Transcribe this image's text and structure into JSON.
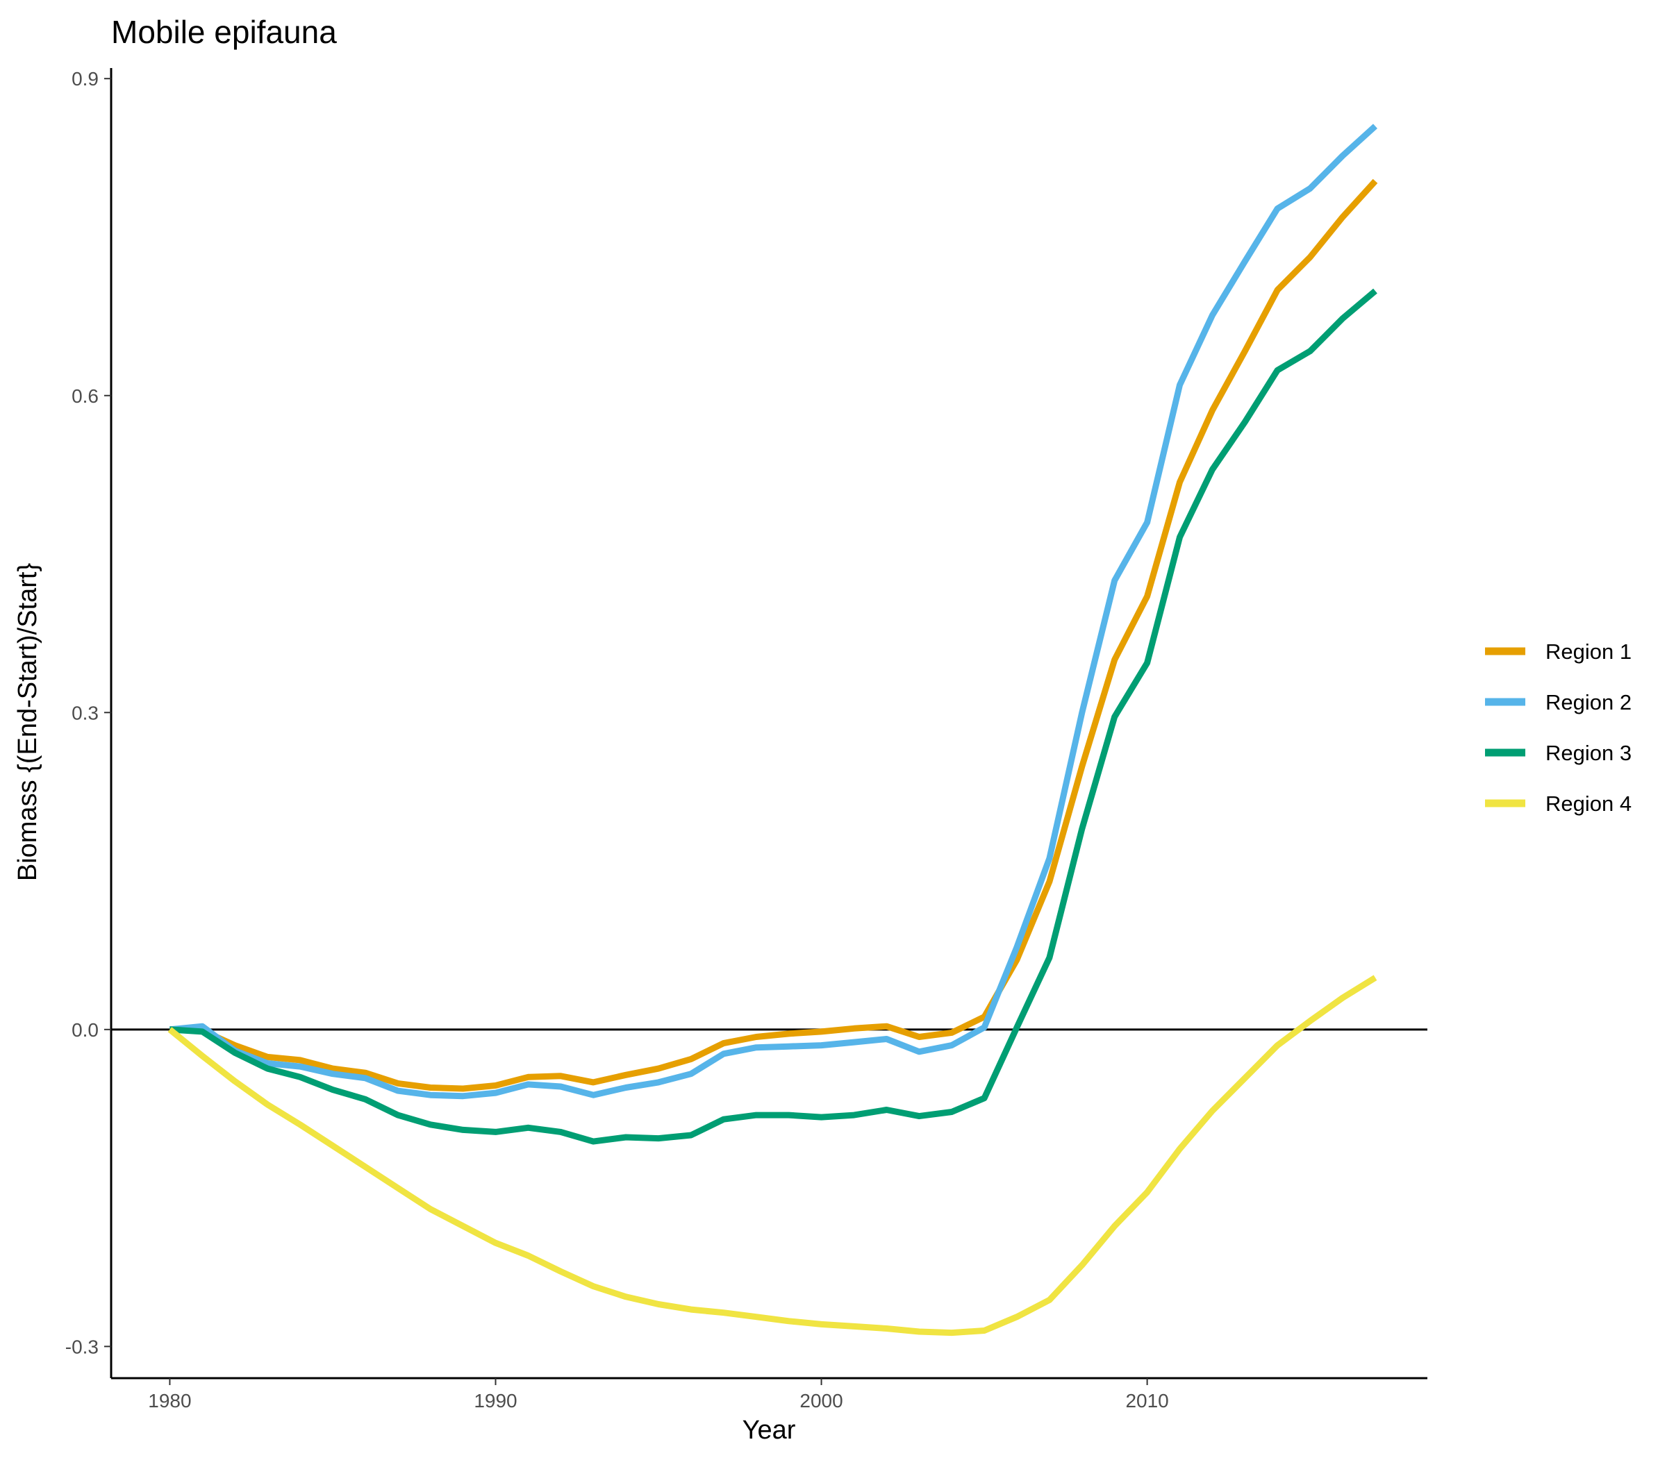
{
  "chart_data": {
    "type": "line",
    "title": "Mobile epifauna",
    "xlabel": "Year",
    "ylabel": "Biomass {(End-Start)/Start}",
    "xlim": [
      1978.2,
      2018.6
    ],
    "ylim": [
      -0.33,
      0.91
    ],
    "xticks": [
      1980,
      1990,
      2000,
      2010
    ],
    "xtick_labels": [
      "1980",
      "1990",
      "2000",
      "2010"
    ],
    "yticks": [
      -0.3,
      0.0,
      0.3,
      0.6,
      0.9
    ],
    "ytick_labels": [
      "-0.3",
      "0.0",
      "0.3",
      "0.6",
      "0.9"
    ],
    "hline": 0,
    "grid": false,
    "legend_position": "right",
    "x": [
      1980,
      1981,
      1982,
      1983,
      1984,
      1985,
      1986,
      1987,
      1988,
      1989,
      1990,
      1991,
      1992,
      1993,
      1994,
      1995,
      1996,
      1997,
      1998,
      1999,
      2000,
      2001,
      2002,
      2003,
      2004,
      2005,
      2006,
      2007,
      2008,
      2009,
      2010,
      2011,
      2012,
      2013,
      2014,
      2015,
      2016,
      2017
    ],
    "series": [
      {
        "name": "Region 1",
        "color": "#E69F00",
        "values": [
          0.0,
          -0.001,
          -0.015,
          -0.026,
          -0.029,
          -0.037,
          -0.041,
          -0.051,
          -0.055,
          -0.056,
          -0.053,
          -0.045,
          -0.044,
          -0.05,
          -0.043,
          -0.037,
          -0.028,
          -0.013,
          -0.007,
          -0.004,
          -0.002,
          0.001,
          0.003,
          -0.007,
          -0.003,
          0.012,
          0.066,
          0.14,
          0.249,
          0.35,
          0.41,
          0.518,
          0.586,
          0.642,
          0.7,
          0.731,
          0.769,
          0.803
        ]
      },
      {
        "name": "Region 2",
        "color": "#56B4E9",
        "values": [
          0.0,
          0.003,
          -0.02,
          -0.032,
          -0.035,
          -0.042,
          -0.046,
          -0.058,
          -0.062,
          -0.063,
          -0.06,
          -0.052,
          -0.054,
          -0.062,
          -0.055,
          -0.05,
          -0.042,
          -0.023,
          -0.017,
          -0.016,
          -0.015,
          -0.012,
          -0.009,
          -0.021,
          -0.015,
          0.002,
          0.078,
          0.162,
          0.3,
          0.425,
          0.48,
          0.61,
          0.676,
          0.727,
          0.777,
          0.796,
          0.827,
          0.855
        ]
      },
      {
        "name": "Region 3",
        "color": "#009E73",
        "values": [
          0.0,
          -0.002,
          -0.022,
          -0.037,
          -0.045,
          -0.057,
          -0.066,
          -0.081,
          -0.09,
          -0.095,
          -0.097,
          -0.093,
          -0.097,
          -0.106,
          -0.102,
          -0.103,
          -0.1,
          -0.085,
          -0.081,
          -0.081,
          -0.083,
          -0.081,
          -0.076,
          -0.082,
          -0.078,
          -0.065,
          0.002,
          0.068,
          0.19,
          0.296,
          0.347,
          0.466,
          0.53,
          0.575,
          0.624,
          0.642,
          0.673,
          0.699
        ]
      },
      {
        "name": "Region 4",
        "color": "#F0E442",
        "values": [
          0.0,
          -0.025,
          -0.049,
          -0.071,
          -0.09,
          -0.11,
          -0.13,
          -0.15,
          -0.17,
          -0.186,
          -0.202,
          -0.214,
          -0.229,
          -0.243,
          -0.253,
          -0.26,
          -0.265,
          -0.268,
          -0.272,
          -0.276,
          -0.279,
          -0.281,
          -0.283,
          -0.286,
          -0.287,
          -0.285,
          -0.272,
          -0.256,
          -0.223,
          -0.186,
          -0.154,
          -0.113,
          -0.077,
          -0.046,
          -0.015,
          0.008,
          0.03,
          0.049
        ]
      }
    ]
  }
}
